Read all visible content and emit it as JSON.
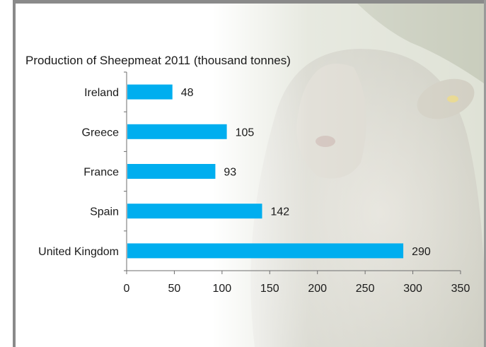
{
  "chart_data": {
    "type": "bar",
    "orientation": "horizontal",
    "title": "Production of Sheepmeat 2011 (thousand tonnes)",
    "categories": [
      "Ireland",
      "Greece",
      "France",
      "Spain",
      "United Kingdom"
    ],
    "values": [
      48,
      105,
      93,
      142,
      290
    ],
    "xlabel": "",
    "ylabel": "",
    "xlim": [
      0,
      350
    ],
    "xticks": [
      "0",
      "50",
      "100",
      "150",
      "200",
      "250",
      "300",
      "350"
    ],
    "grid": false,
    "legend": "none",
    "bar_color": "#00aeef",
    "axis_color": "#6e6e6e"
  }
}
